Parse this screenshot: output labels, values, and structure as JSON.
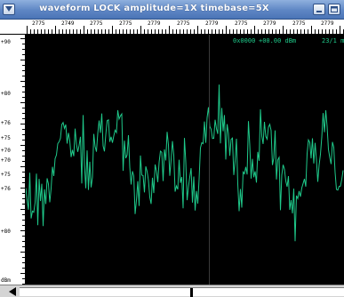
{
  "window": {
    "title": "waveform  LOCK amplitude=1X timebase=5X",
    "icons": {
      "menu": "window-menu-icon",
      "minimize": "minimize-icon",
      "maximize": "maximize-icon"
    }
  },
  "ruler": {
    "labels": [
      "2775",
      "2749",
      "2775",
      "2775",
      "2779",
      "2775",
      "2779",
      "2775",
      "2779",
      "2775",
      "2779"
    ]
  },
  "yaxis": {
    "labels": [
      "+90",
      "+80",
      "+76",
      "+75",
      "+70",
      "+70",
      "+75",
      "+76",
      "+80",
      "dBm"
    ]
  },
  "readout": {
    "time": "0x0000",
    "level": "+00.00 dBm",
    "ratio": "23/1 m"
  },
  "colors": {
    "trace": "#1fc98a",
    "plot_background": "#000000",
    "titlebar": "#5e86c4"
  }
}
